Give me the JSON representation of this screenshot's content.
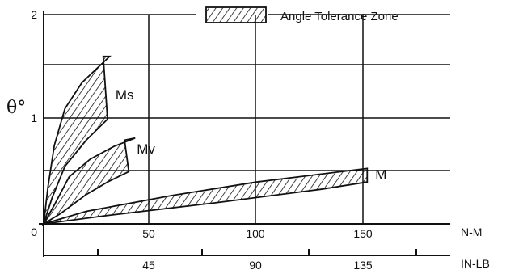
{
  "chart_data": {
    "type": "area",
    "title": "",
    "ylabel": "θ°",
    "ylim": [
      0,
      2
    ],
    "yticks": [
      "0",
      "1",
      "2"
    ],
    "x_nm": {
      "label": "N-M",
      "ticks": [
        "50",
        "100",
        "150"
      ],
      "values": [
        50,
        100,
        150
      ],
      "range": [
        0,
        190
      ]
    },
    "x_inlb": {
      "label": "IN-LB",
      "ticks": [
        "45",
        "90",
        "135"
      ],
      "values": [
        45,
        90,
        135
      ]
    },
    "legend": {
      "label": "Angle Tolerance Zone",
      "position": "top"
    },
    "grid": true,
    "series": [
      {
        "name": "Ms",
        "upper": [
          [
            0,
            0
          ],
          [
            2,
            0.35
          ],
          [
            5,
            0.75
          ],
          [
            10,
            1.1
          ],
          [
            18,
            1.35
          ],
          [
            31,
            1.6
          ]
        ],
        "lower": [
          [
            0,
            0
          ],
          [
            4,
            0.25
          ],
          [
            10,
            0.55
          ],
          [
            20,
            0.8
          ],
          [
            30,
            1.0
          ],
          [
            28,
            1.6
          ]
        ]
      },
      {
        "name": "Mv",
        "upper": [
          [
            0,
            0
          ],
          [
            5,
            0.18
          ],
          [
            12,
            0.45
          ],
          [
            22,
            0.62
          ],
          [
            33,
            0.74
          ],
          [
            43,
            0.82
          ]
        ],
        "lower": [
          [
            0,
            0
          ],
          [
            8,
            0.1
          ],
          [
            20,
            0.28
          ],
          [
            30,
            0.4
          ],
          [
            40,
            0.5
          ],
          [
            38,
            0.8
          ]
        ]
      },
      {
        "name": "M",
        "upper": [
          [
            0,
            0
          ],
          [
            20,
            0.12
          ],
          [
            60,
            0.27
          ],
          [
            100,
            0.4
          ],
          [
            152,
            0.53
          ]
        ],
        "lower": [
          [
            0,
            0
          ],
          [
            30,
            0.08
          ],
          [
            80,
            0.2
          ],
          [
            130,
            0.33
          ],
          [
            152,
            0.4
          ]
        ]
      }
    ],
    "labels": [
      {
        "text": "Ms",
        "x": 33,
        "y": 1.19
      },
      {
        "text": "Mv",
        "x": 43,
        "y": 0.67
      },
      {
        "text": "M",
        "x": 155,
        "y": 0.43
      }
    ]
  }
}
